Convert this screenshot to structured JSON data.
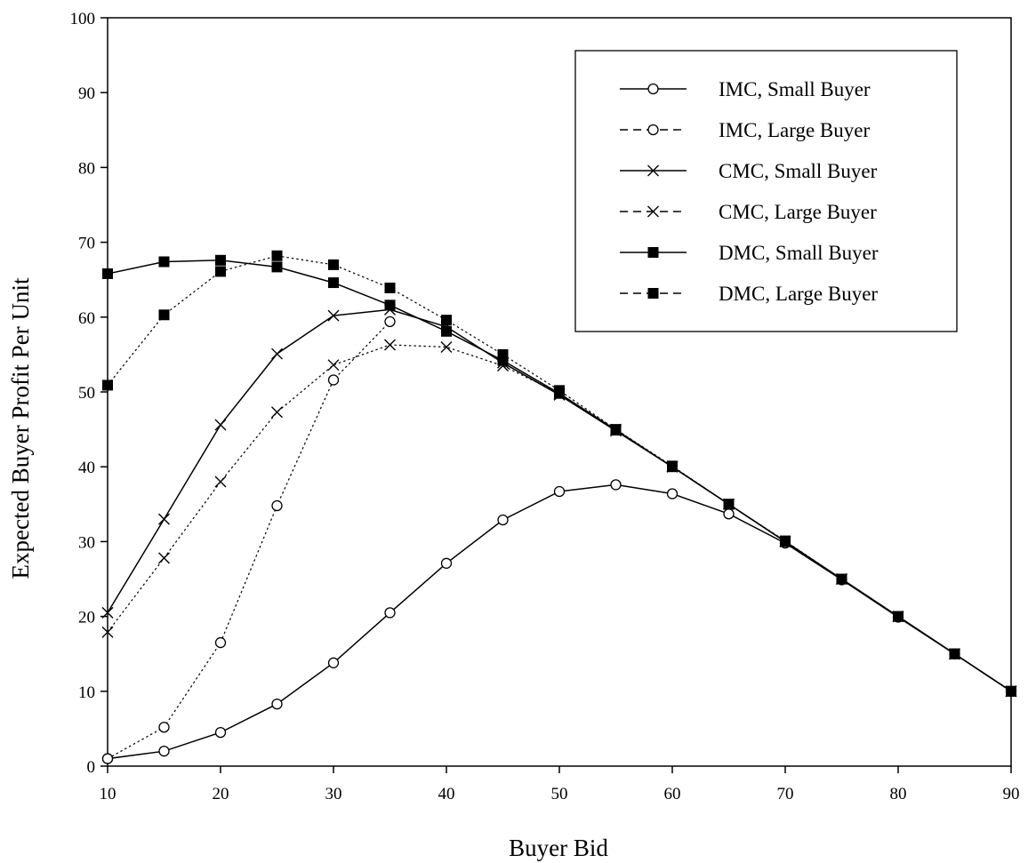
{
  "chart_data": {
    "type": "line",
    "title": "",
    "xlabel": "Buyer Bid",
    "ylabel": "Expected Buyer Profit Per Unit",
    "xlim": [
      10,
      90
    ],
    "ylim": [
      0,
      100
    ],
    "xticks": [
      "10",
      "20",
      "30",
      "40",
      "50",
      "60",
      "70",
      "80",
      "90"
    ],
    "yticks": [
      "0",
      "10",
      "20",
      "30",
      "40",
      "50",
      "60",
      "70",
      "80",
      "90",
      "100"
    ],
    "grid": false,
    "legend_position": "top-right",
    "x": [
      10,
      15,
      20,
      25,
      30,
      35,
      40,
      45,
      50,
      55,
      60,
      65,
      70,
      75,
      80,
      85,
      90
    ],
    "series": [
      {
        "name": "IMC, Small Buyer",
        "marker": "circle",
        "line": "solid",
        "values": [
          1,
          2,
          4.5,
          8.3,
          13.8,
          20.5,
          27.1,
          32.9,
          36.7,
          37.6,
          36.4,
          33.7,
          29.8,
          24.9,
          19.9,
          15,
          10
        ]
      },
      {
        "name": "IMC, Large Buyer",
        "marker": "circle",
        "line": "dashed",
        "values": [
          1,
          5.2,
          16.5,
          34.8,
          51.6,
          59.4,
          null,
          null,
          null,
          null,
          null,
          null,
          null,
          null,
          null,
          null,
          null
        ]
      },
      {
        "name": "CMC, Small Buyer",
        "marker": "x",
        "line": "solid",
        "values": [
          20.5,
          33,
          45.6,
          55.1,
          60.2,
          61,
          58.7,
          53.9,
          49.6,
          44.8,
          40,
          35,
          30,
          25,
          20,
          15,
          10
        ]
      },
      {
        "name": "CMC, Large Buyer",
        "marker": "x",
        "line": "dashed",
        "values": [
          17.9,
          27.8,
          38,
          47.3,
          53.6,
          56.3,
          56,
          53.5,
          49.8,
          45,
          40,
          35,
          30,
          25,
          20,
          15,
          10
        ]
      },
      {
        "name": "DMC, Small Buyer",
        "marker": "square",
        "line": "solid",
        "values": [
          65.8,
          67.4,
          67.6,
          66.7,
          64.6,
          61.6,
          58.1,
          54.2,
          49.8,
          44.9,
          40,
          35,
          30,
          25,
          20,
          15,
          10
        ]
      },
      {
        "name": "DMC, Large Buyer",
        "marker": "square",
        "line": "dashed",
        "values": [
          50.9,
          60.3,
          66.1,
          68.2,
          67,
          63.9,
          59.6,
          55,
          50.2,
          45,
          40.1,
          35,
          30.1,
          25,
          20,
          15,
          10
        ]
      }
    ]
  }
}
